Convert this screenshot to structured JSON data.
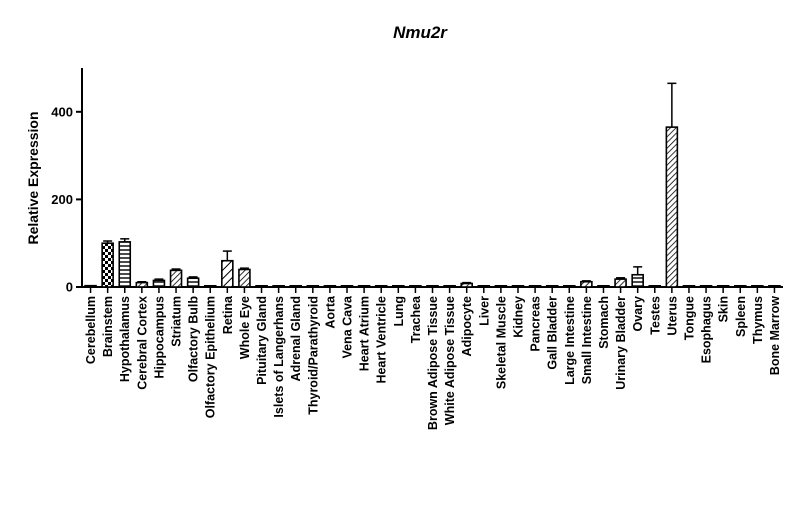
{
  "chart_data": {
    "type": "bar",
    "title": "Nmu2r",
    "xlabel": "",
    "ylabel": "Relative Expression",
    "ylim": [
      0,
      500
    ],
    "yticks": [
      0,
      200,
      400
    ],
    "categories": [
      "Cerebellum",
      "Brainstem",
      "Hypothalamus",
      "Cerebral Cortex",
      "Hippocampus",
      "Striatum",
      "Olfactory Bulb",
      "Olfactory Epithelium",
      "Retina",
      "Whole Eye",
      "Pituitary Gland",
      "Islets of Langerhans",
      "Adrenal Gland",
      "Thyroid/Parathyroid",
      "Aorta",
      "Vena Cava",
      "Heart Atrium",
      "Heart Ventricle",
      "Lung",
      "Trachea",
      "Brown Adipose Tissue",
      "White Adipose Tissue",
      "Adipocyte",
      "Liver",
      "Skeletal Muscle",
      "Kidney",
      "Pancreas",
      "Gall Bladder",
      "Large Intestine",
      "Small Intestine",
      "Stomach",
      "Urinary Bladder",
      "Ovary",
      "Testes",
      "Uterus",
      "Tongue",
      "Esophagus",
      "Skin",
      "Spleen",
      "Thymus",
      "Bone Marrow"
    ],
    "values": [
      3,
      100,
      103,
      10,
      15,
      38,
      20,
      1,
      60,
      40,
      1,
      2,
      1,
      0,
      0,
      0,
      0,
      0,
      0,
      0,
      0,
      0,
      8,
      0,
      0,
      0,
      0,
      0,
      1,
      12,
      1,
      18,
      28,
      1,
      365,
      0,
      0,
      0,
      0,
      0,
      0
    ],
    "errors": [
      0,
      5,
      7,
      2,
      3,
      3,
      3,
      0,
      22,
      3,
      0,
      0,
      0,
      0,
      0,
      0,
      0,
      0,
      0,
      0,
      0,
      0,
      2,
      0,
      0,
      0,
      0,
      0,
      0,
      2,
      0,
      3,
      18,
      0,
      100,
      0,
      0,
      0,
      0,
      0,
      0
    ],
    "patterns": [
      "diag",
      "check",
      "hlines",
      "diag",
      "hlines",
      "diag",
      "hlines",
      "diag",
      "diag-wide",
      "diag",
      "diag",
      "diag",
      "diag",
      "diag",
      "diag",
      "diag",
      "diag",
      "diag",
      "diag",
      "diag",
      "diag",
      "diag",
      "diag",
      "diag",
      "diag",
      "diag",
      "diag",
      "diag",
      "diag",
      "diag",
      "diag",
      "diag",
      "hlines",
      "diag",
      "diag",
      "diag",
      "diag",
      "diag",
      "diag",
      "diag",
      "diag"
    ],
    "grid": false,
    "legend": "none"
  }
}
